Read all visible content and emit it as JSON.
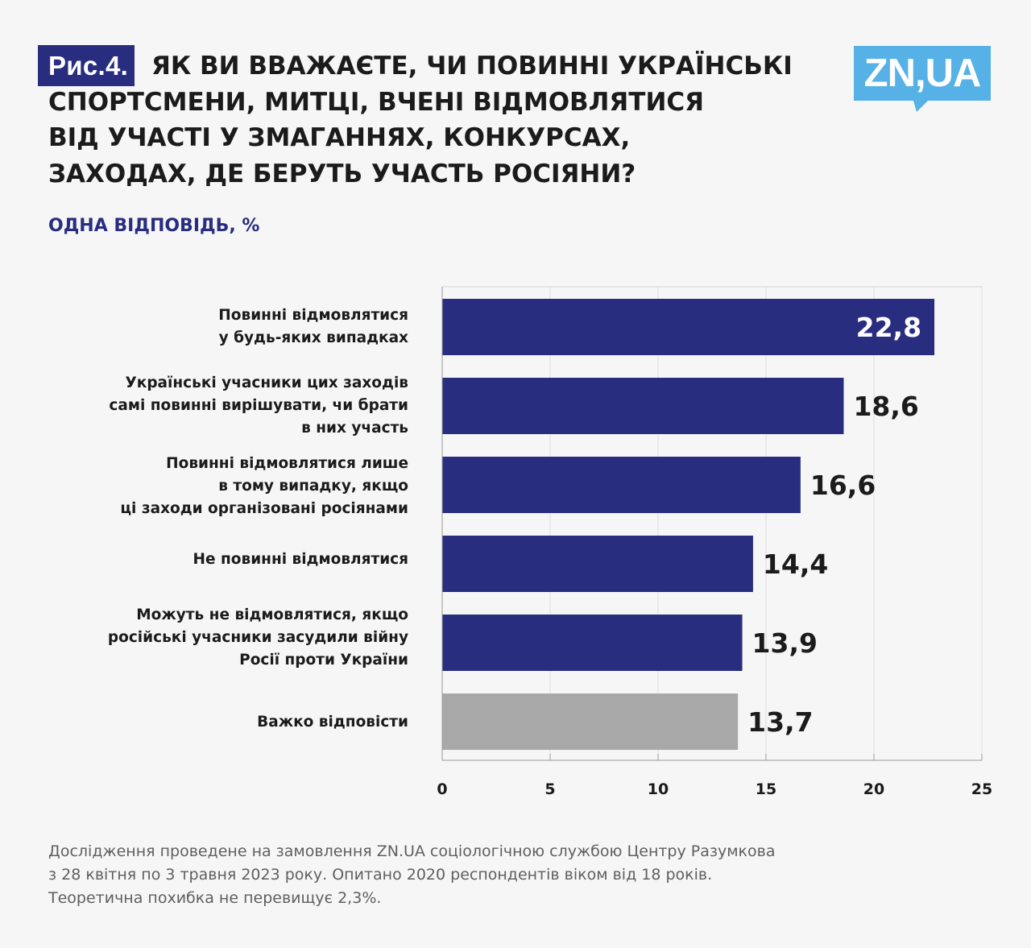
{
  "figure": {
    "tag": "Рис.4.",
    "title_lines": [
      "ЯК ВИ ВВАЖАЄТЕ, ЧИ ПОВИННІ УКРАЇНСЬКІ",
      "СПОРТСМЕНИ, МИТЦІ, ВЧЕНІ ВІДМОВЛЯТИСЯ",
      "ВІД УЧАСТІ У ЗМАГАННЯХ, КОНКУРСАХ,",
      "ЗАХОДАХ, ДЕ БЕРУТЬ УЧАСТЬ РОСІЯНИ?"
    ],
    "subtitle": "ОДНА ВІДПОВІДЬ, %"
  },
  "logo": {
    "text": "ZN,UA",
    "color": "#55b1e6"
  },
  "colors": {
    "primary": "#282d7f",
    "neutral": "#a8a8a8"
  },
  "chart_data": {
    "type": "bar",
    "orientation": "horizontal",
    "categories": [
      "Повинні відмовлятися\nу будь-яких випадках",
      "Українські учасники цих заходів\nсамі повинні вирішувати, чи брати\nв них участь",
      "Повинні відмовлятися лише\nв тому випадку, якщо\nці заходи організовані росіянами",
      "Не повинні відмовлятися",
      "Можуть не відмовлятися, якщо\nросійські учасники засудили війну\nРосії проти України",
      "Важко відповісти"
    ],
    "values": [
      22.8,
      18.6,
      16.6,
      14.4,
      13.9,
      13.7
    ],
    "value_labels": [
      "22,8",
      "18,6",
      "16,6",
      "14,4",
      "13,9",
      "13,7"
    ],
    "bar_colors": [
      "#282d7f",
      "#282d7f",
      "#282d7f",
      "#282d7f",
      "#282d7f",
      "#a8a8a8"
    ],
    "xlim": [
      0,
      25
    ],
    "xticks": [
      0,
      5,
      10,
      15,
      20,
      25
    ],
    "xtick_labels": [
      "0",
      "5",
      "10",
      "15",
      "20",
      "25"
    ],
    "grid": true,
    "xlabel": "",
    "ylabel": "",
    "unit": "%"
  },
  "footnote": [
    "Дослідження проведене на замовлення ZN.UA соціологічною службою Центру Разумкова",
    "з 28 квітня по 3 травня 2023 року. Опитано 2020 респондентів віком від 18 років.",
    "Теоретична похибка не перевищує 2,3%."
  ]
}
